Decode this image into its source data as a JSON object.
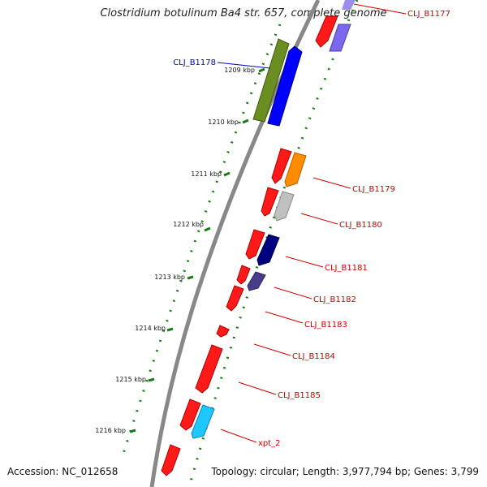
{
  "title": "Clostridium botulinum Ba4 str. 657, complete genome",
  "accession_label": "Accession:",
  "accession": "NC_012658",
  "topology_text": "Topology: circular; Length: 3,977,794 bp; Genes: 3,799",
  "ticks": [
    "1209 kbp",
    "1210 kbp",
    "1211 kbp",
    "1212 kbp",
    "1213 kbp",
    "1214 kbp",
    "1215 kbp",
    "1216 kbp"
  ],
  "genes": [
    {
      "name": "CLJ_B1177",
      "color": "#cc0000"
    },
    {
      "name": "CLJ_B1178",
      "color": "#0000cc"
    },
    {
      "name": "CLJ_B1179",
      "color": "#cc0000"
    },
    {
      "name": "CLJ_B1180",
      "color": "#cc0000"
    },
    {
      "name": "CLJ_B1181",
      "color": "#cc0000"
    },
    {
      "name": "CLJ_B1182",
      "color": "#cc0000"
    },
    {
      "name": "CLJ_B1183",
      "color": "#cc0000"
    },
    {
      "name": "CLJ_B1184",
      "color": "#cc0000"
    },
    {
      "name": "CLJ_B1185",
      "color": "#cc0000"
    },
    {
      "name": "xpt_2",
      "color": "#cc0000"
    }
  ],
  "colors": {
    "backbone": "#888888",
    "dots": "#1a7a1a",
    "red_feature": "#ff1a1a",
    "blue_feature": "#0000ff",
    "olive_feature": "#6b8e23",
    "orange_feature": "#ff8c00",
    "grey_feature": "#c0c0c0",
    "navy_feature": "#000080",
    "slate_feature": "#483d8b",
    "cyan_feature": "#1ec8ff",
    "lavender_feature": "#7b68ee"
  }
}
